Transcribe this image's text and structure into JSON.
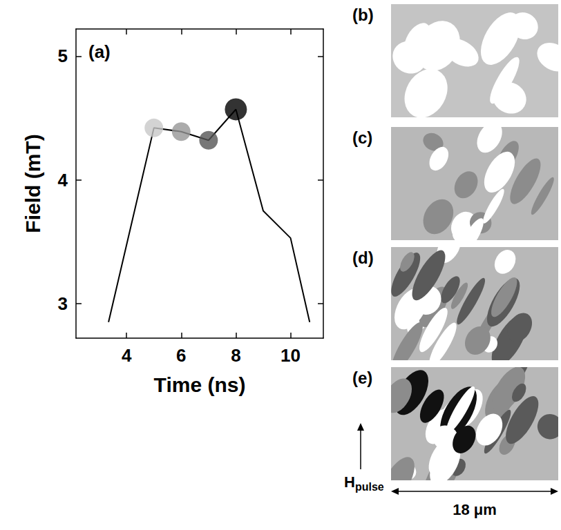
{
  "chart_data": {
    "type": "line",
    "panel_label": "(a)",
    "x_label": "Time (ns)",
    "y_label": "Field (mT)",
    "x": [
      3.34,
      5,
      6,
      7,
      8,
      9,
      10,
      10.7
    ],
    "values": [
      2.85,
      4.42,
      4.39,
      4.32,
      4.57,
      3.75,
      3.53,
      2.85
    ],
    "color": "#000000",
    "markers": {
      "type": "scatter",
      "marker": "circle",
      "x": [
        5,
        6,
        7,
        8
      ],
      "values": [
        4.42,
        4.39,
        4.32,
        4.57
      ],
      "colors": [
        "#c8c8c8",
        "#969696",
        "#555555",
        "#000000"
      ]
    },
    "xlim": [
      2.15,
      11.2
    ],
    "xticks": [
      4,
      6,
      8,
      10
    ],
    "ylim": [
      2.72,
      5.22
    ],
    "yticks": [
      3,
      4,
      5
    ],
    "grid": false
  },
  "images": [
    {
      "label": "(b)"
    },
    {
      "label": "(c)"
    },
    {
      "label": "(d)"
    },
    {
      "label": "(e)"
    }
  ],
  "field_arrow": {
    "main": "H",
    "sub": "pulse"
  },
  "scale_bar": "18 μm"
}
